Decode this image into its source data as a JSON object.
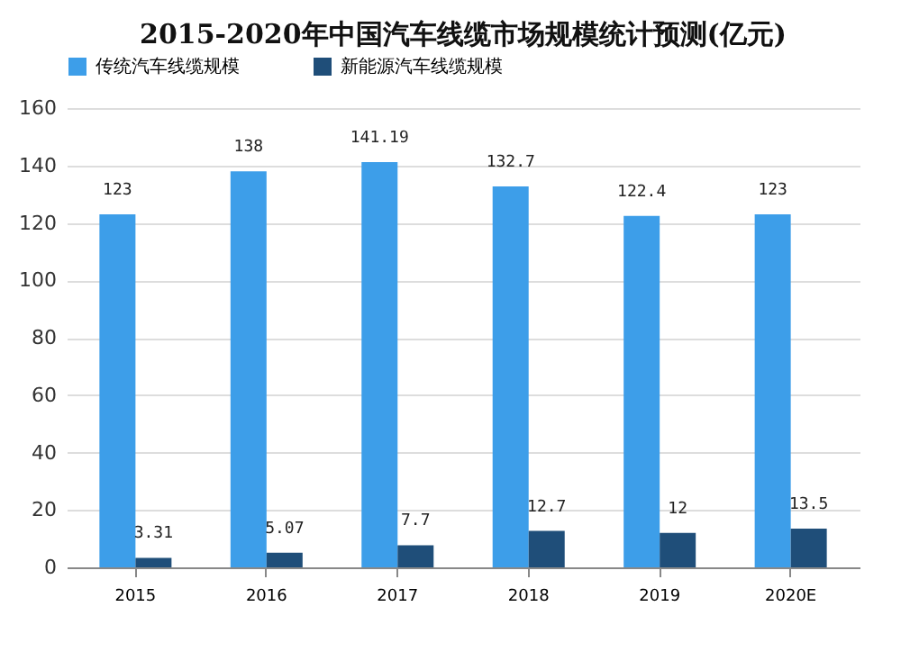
{
  "chart_data": {
    "type": "bar",
    "title": "2015-2020年中国汽车线缆市场规模统计预测(亿元)",
    "categories": [
      "2015",
      "2016",
      "2017",
      "2018",
      "2019",
      "2020E"
    ],
    "series": [
      {
        "name": "传统汽车线缆规模",
        "color": "#3d9ee9",
        "values": [
          123,
          138,
          141.19,
          132.7,
          122.4,
          123
        ]
      },
      {
        "name": "新能源汽车线缆规模",
        "color": "#1f4e79",
        "values": [
          3.31,
          5.07,
          7.7,
          12.7,
          12,
          13.5
        ]
      }
    ],
    "ylim": [
      0,
      160
    ],
    "yticks": [
      0,
      20,
      40,
      60,
      80,
      100,
      120,
      140,
      160
    ],
    "grid": "y",
    "legend": "top",
    "data_labels": true
  }
}
